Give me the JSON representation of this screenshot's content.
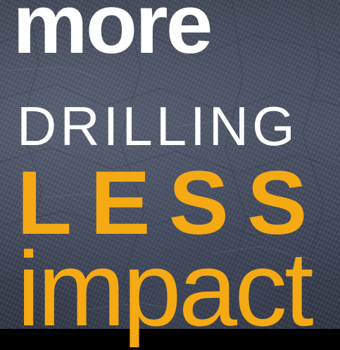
{
  "headline": {
    "line1": "more",
    "line2": "DRILLING",
    "line3": "LESS",
    "line4": "impact"
  },
  "colors": {
    "white_text": "#ffffff",
    "accent_orange": "#f5a913",
    "background": "#454b5c",
    "bottom_bar": "#000000"
  }
}
